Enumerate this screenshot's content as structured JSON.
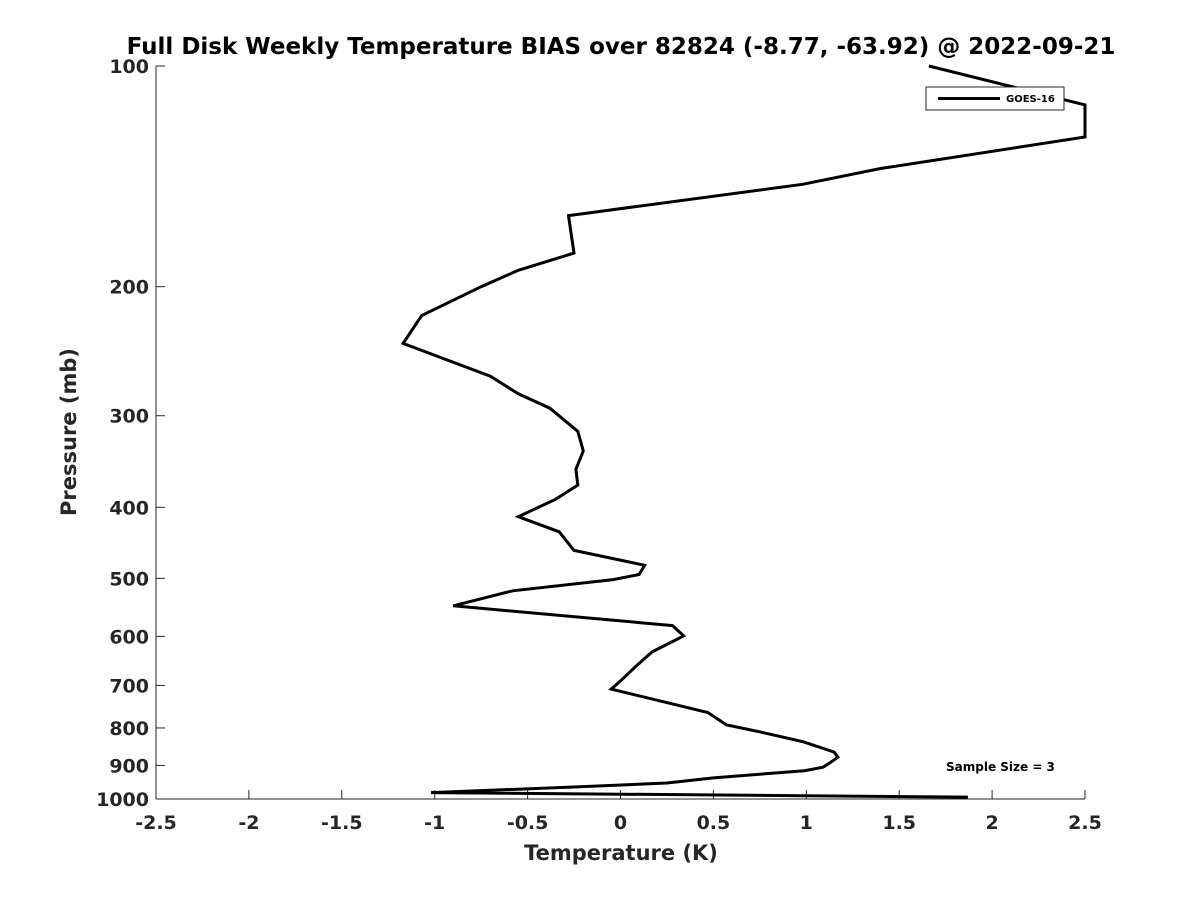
{
  "chart_data": {
    "type": "line",
    "title": "Full Disk Weekly Temperature BIAS over 82824 (-8.77, -63.92) @ 2022-09-21",
    "xlabel": "Temperature (K)",
    "ylabel": "Pressure (mb)",
    "xlim": [
      -2.5,
      2.5
    ],
    "ylim": [
      100,
      1000
    ],
    "y_scale": "log",
    "y_reversed": true,
    "grid": false,
    "legend_position": "top-right",
    "x_ticks": [
      -2.5,
      -2,
      -1.5,
      -1,
      -0.5,
      0,
      0.5,
      1,
      1.5,
      2,
      2.5
    ],
    "x_tick_labels": [
      "-2.5",
      "-2",
      "-1.5",
      "-1",
      "-0.5",
      "0",
      "0.5",
      "1",
      "1.5",
      "2",
      "2.5"
    ],
    "y_ticks": [
      100,
      200,
      300,
      400,
      500,
      600,
      700,
      800,
      900,
      1000
    ],
    "y_tick_labels": [
      "100",
      "200",
      "300",
      "400",
      "500",
      "600",
      "700",
      "800",
      "900",
      "1000"
    ],
    "series": [
      {
        "name": "GOES-16",
        "color": "#000000",
        "points": [
          [
            1.66,
            100
          ],
          [
            2.5,
            113
          ],
          [
            2.5,
            125
          ],
          [
            1.4,
            138
          ],
          [
            0.98,
            145
          ],
          [
            -0.28,
            160
          ],
          [
            -0.25,
            180
          ],
          [
            -0.55,
            190
          ],
          [
            -0.75,
            200
          ],
          [
            -1.07,
            219
          ],
          [
            -1.17,
            239
          ],
          [
            -0.7,
            265
          ],
          [
            -0.55,
            280
          ],
          [
            -0.38,
            293
          ],
          [
            -0.23,
            315
          ],
          [
            -0.2,
            335
          ],
          [
            -0.24,
            355
          ],
          [
            -0.23,
            373
          ],
          [
            -0.35,
            390
          ],
          [
            -0.55,
            412
          ],
          [
            -0.33,
            432
          ],
          [
            -0.25,
            458
          ],
          [
            0.13,
            480
          ],
          [
            0.1,
            494
          ],
          [
            -0.04,
            502
          ],
          [
            -0.58,
            520
          ],
          [
            -0.9,
            545
          ],
          [
            0.28,
            580
          ],
          [
            0.34,
            599
          ],
          [
            0.17,
            630
          ],
          [
            0.08,
            660
          ],
          [
            0.0,
            690
          ],
          [
            -0.05,
            708
          ],
          [
            0.26,
            740
          ],
          [
            0.47,
            762
          ],
          [
            0.57,
            792
          ],
          [
            0.75,
            810
          ],
          [
            0.98,
            835
          ],
          [
            1.15,
            863
          ],
          [
            1.17,
            877
          ],
          [
            1.12,
            895
          ],
          [
            1.09,
            905
          ],
          [
            0.99,
            915
          ],
          [
            0.5,
            936
          ],
          [
            0.25,
            951
          ],
          [
            -0.25,
            963
          ],
          [
            -1.02,
            980
          ],
          [
            1.87,
            994
          ]
        ]
      }
    ],
    "annotations": [
      {
        "text": "Sample Size = 3",
        "position": "bottom-right"
      }
    ]
  }
}
